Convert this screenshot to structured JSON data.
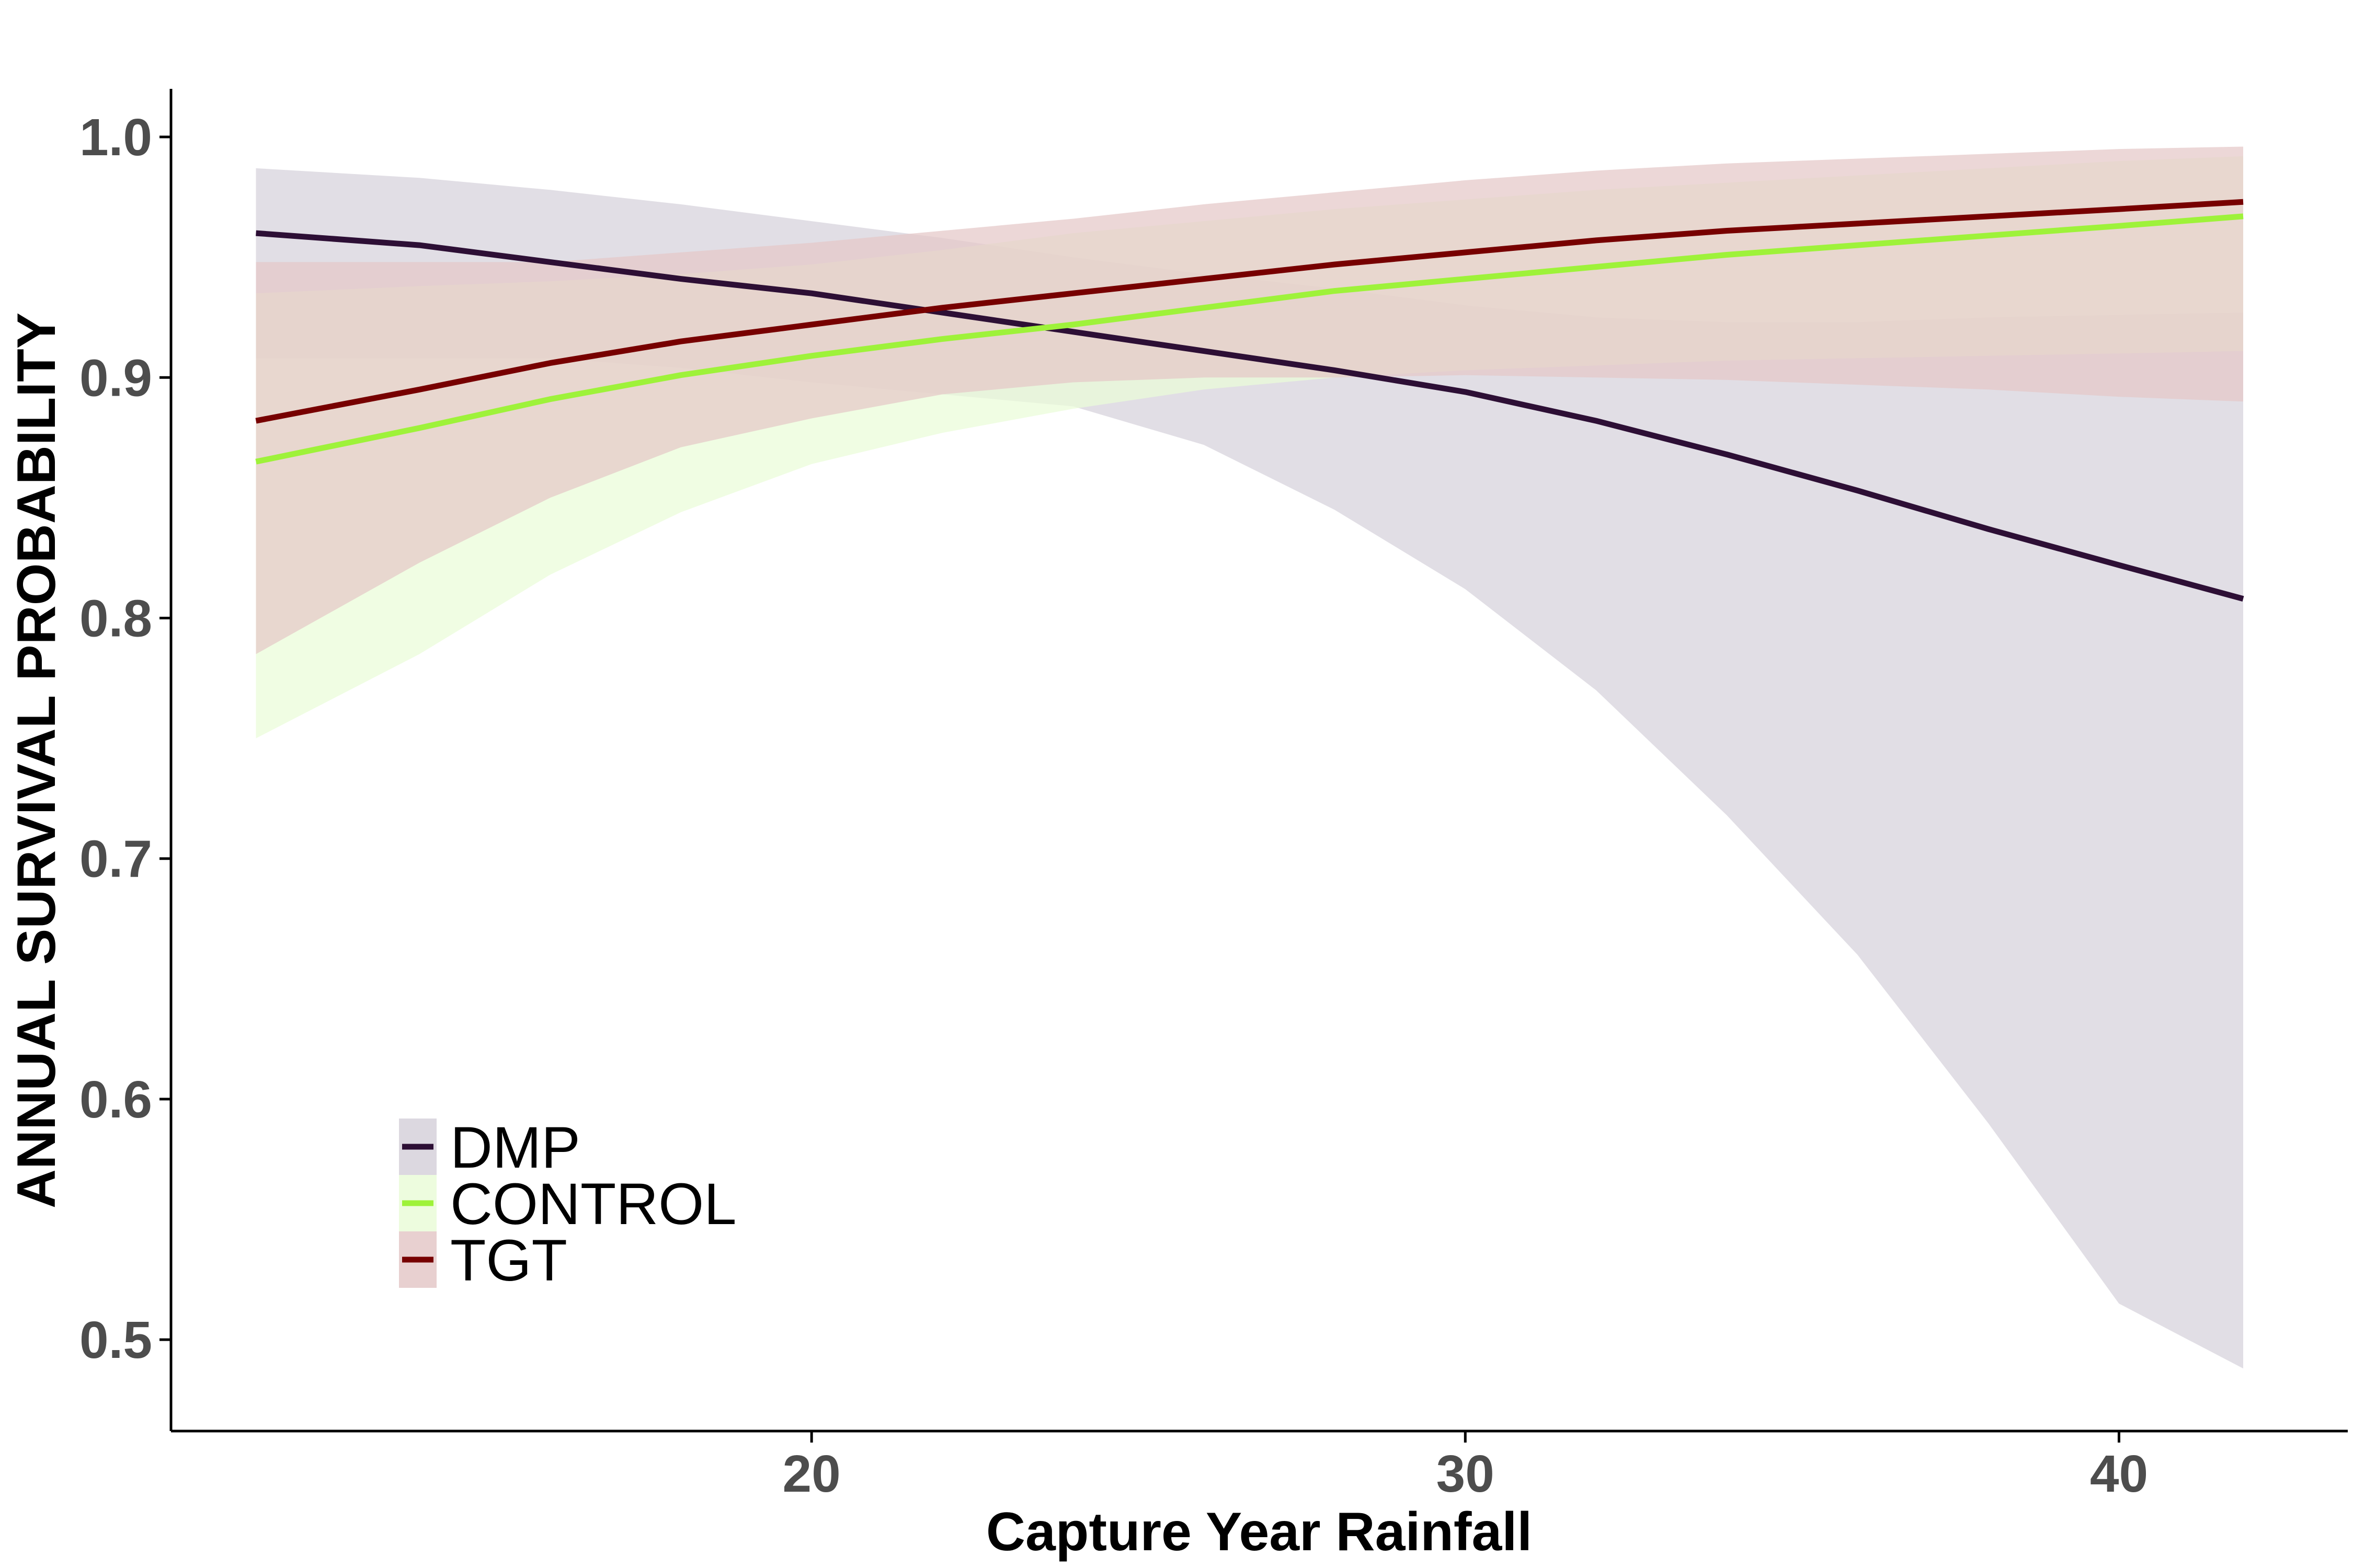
{
  "chart_data": {
    "type": "line",
    "title": "",
    "xlabel": "Capture Year Rainfall",
    "ylabel": "ANNUAL SURVIVAL PROBABILITY",
    "xlim": [
      10.2,
      43.5
    ],
    "ylim": [
      0.462,
      1.02
    ],
    "x_ticks": [
      20,
      30,
      40
    ],
    "y_ticks": [
      0.5,
      0.6,
      0.7,
      0.8,
      0.9,
      1.0
    ],
    "x_tick_labels": [
      "20",
      "30",
      "40"
    ],
    "y_tick_labels": [
      "0.5",
      "0.6",
      "0.7",
      "0.8",
      "0.9",
      "1.0"
    ],
    "grid": false,
    "legend_position": "bottom-left",
    "series": [
      {
        "name": "DMP",
        "color": "#2d0f35",
        "band_color": "#d6d1db",
        "x": [
          11.5,
          14,
          16,
          18,
          20,
          22,
          24,
          26,
          28,
          30,
          32,
          34,
          36,
          38,
          40,
          41.9
        ],
        "y": [
          0.96,
          0.955,
          0.948,
          0.941,
          0.935,
          0.927,
          0.919,
          0.911,
          0.903,
          0.894,
          0.882,
          0.868,
          0.853,
          0.837,
          0.822,
          0.808
        ],
        "lower": [
          0.908,
          0.908,
          0.908,
          0.904,
          0.898,
          0.893,
          0.888,
          0.872,
          0.845,
          0.812,
          0.77,
          0.718,
          0.66,
          0.59,
          0.515,
          0.488
        ],
        "upper": [
          0.987,
          0.983,
          0.978,
          0.972,
          0.965,
          0.958,
          0.95,
          0.943,
          0.937,
          0.93,
          0.925,
          0.923,
          0.923,
          0.925,
          0.926,
          0.927
        ]
      },
      {
        "name": "CONTROL",
        "color": "#9ef23a",
        "band_color": "#eafcd8",
        "x": [
          11.5,
          14,
          16,
          18,
          20,
          22,
          24,
          26,
          28,
          30,
          32,
          34,
          36,
          38,
          40,
          41.9
        ],
        "y": [
          0.865,
          0.879,
          0.891,
          0.901,
          0.909,
          0.916,
          0.922,
          0.929,
          0.936,
          0.941,
          0.946,
          0.951,
          0.955,
          0.959,
          0.963,
          0.967
        ],
        "lower": [
          0.75,
          0.785,
          0.818,
          0.844,
          0.864,
          0.877,
          0.887,
          0.895,
          0.9,
          0.903,
          0.905,
          0.907,
          0.908,
          0.909,
          0.91,
          0.911
        ],
        "upper": [
          0.935,
          0.938,
          0.94,
          0.943,
          0.947,
          0.953,
          0.96,
          0.965,
          0.97,
          0.974,
          0.978,
          0.981,
          0.984,
          0.987,
          0.99,
          0.992
        ]
      },
      {
        "name": "TGT",
        "color": "#770000",
        "band_color": "#e4c8c8",
        "x": [
          11.5,
          14,
          16,
          18,
          20,
          22,
          24,
          26,
          28,
          30,
          32,
          34,
          36,
          38,
          40,
          41.9
        ],
        "y": [
          0.882,
          0.895,
          0.906,
          0.915,
          0.922,
          0.929,
          0.935,
          0.941,
          0.947,
          0.952,
          0.957,
          0.961,
          0.964,
          0.967,
          0.97,
          0.973
        ],
        "lower": [
          0.785,
          0.823,
          0.85,
          0.871,
          0.883,
          0.893,
          0.898,
          0.9,
          0.9,
          0.901,
          0.9,
          0.899,
          0.897,
          0.895,
          0.892,
          0.89
        ],
        "upper": [
          0.948,
          0.948,
          0.948,
          0.952,
          0.956,
          0.961,
          0.966,
          0.972,
          0.977,
          0.982,
          0.986,
          0.989,
          0.991,
          0.993,
          0.995,
          0.996
        ]
      }
    ]
  }
}
